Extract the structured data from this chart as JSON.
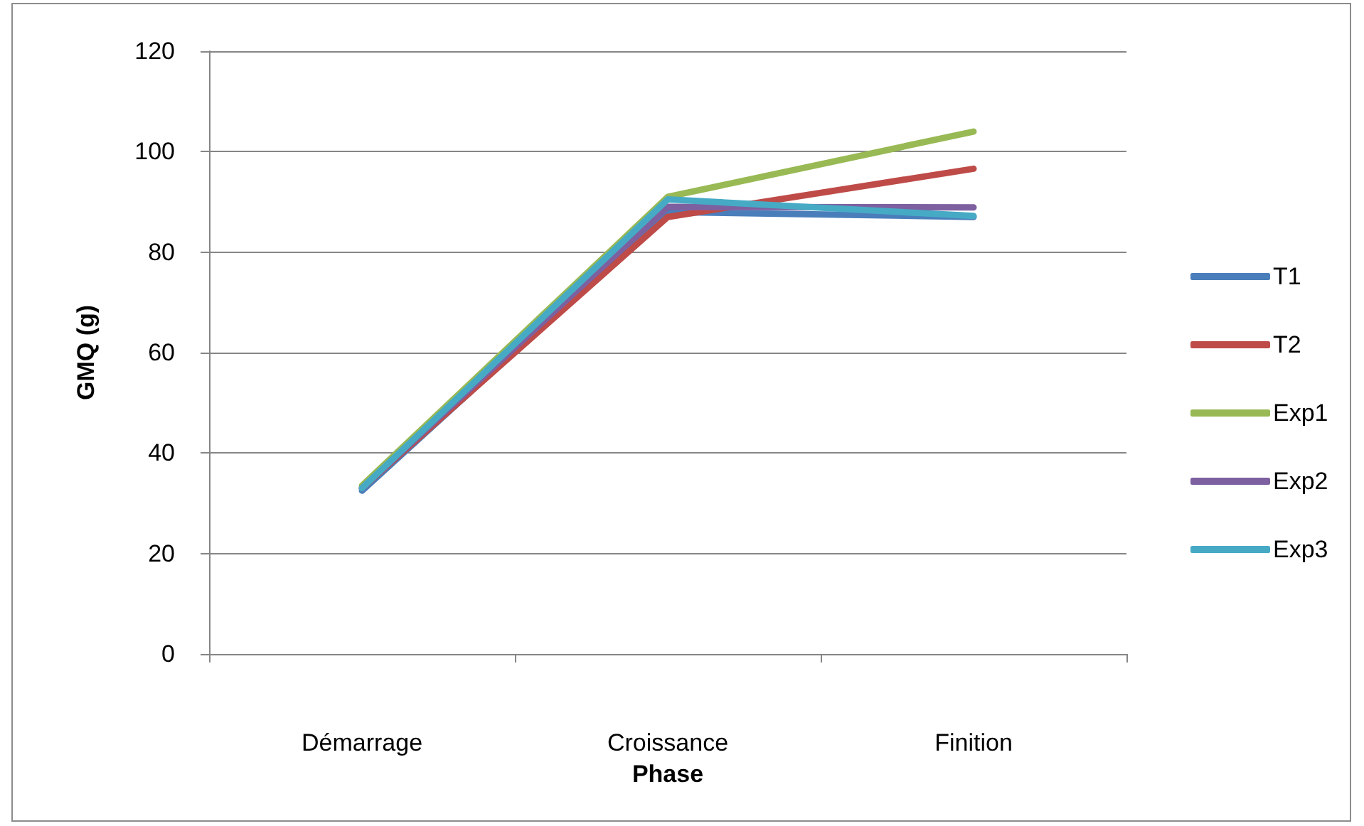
{
  "chart_data": {
    "type": "line",
    "xlabel": "Phase",
    "ylabel": "GMQ (g)",
    "categories": [
      "Démarrage",
      "Croissance",
      "Finition"
    ],
    "series": [
      {
        "name": "T1",
        "color": "#4a7ebb",
        "values": [
          32.5,
          88,
          87
        ]
      },
      {
        "name": "T2",
        "color": "#be4b48",
        "values": [
          33,
          87,
          96.6
        ]
      },
      {
        "name": "Exp1",
        "color": "#98b954",
        "values": [
          33.5,
          91,
          104
        ]
      },
      {
        "name": "Exp2",
        "color": "#7d60a0",
        "values": [
          33,
          89,
          88.9
        ]
      },
      {
        "name": "Exp3",
        "color": "#46aac5",
        "values": [
          33,
          90.5,
          87.2
        ]
      }
    ],
    "ylim": [
      0,
      120
    ],
    "yticks": [
      0,
      20,
      40,
      60,
      80,
      100,
      120
    ],
    "grid": "y",
    "legend": "right",
    "marker": "none",
    "line_style": "solid"
  }
}
